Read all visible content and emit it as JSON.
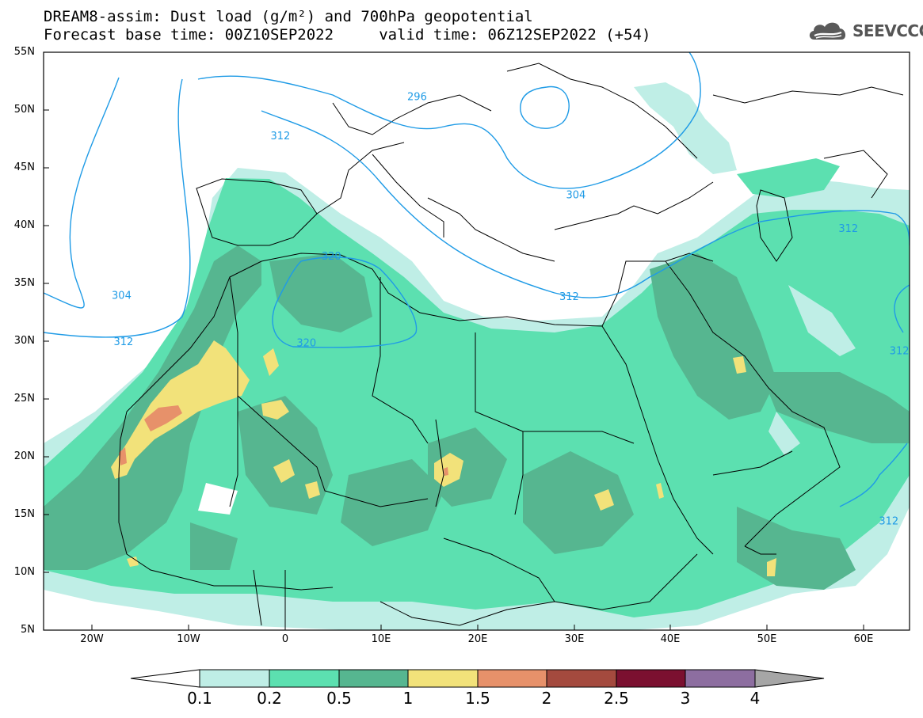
{
  "title_line1": "DREAM8-assim: Dust load (g/m²) and 700hPa geopotential",
  "title_line2": "Forecast base time: 00Z10SEP2022     valid time: 06Z12SEP2022 (+54)",
  "logo": {
    "text": "SEEVCCC",
    "icon": "cloud-logo-icon"
  },
  "map": {
    "lat_labels": [
      "55N",
      "50N",
      "45N",
      "40N",
      "35N",
      "30N",
      "25N",
      "20N",
      "15N",
      "10N",
      "5N"
    ],
    "lon_labels": [
      "20W",
      "10W",
      "0",
      "10E",
      "20E",
      "30E",
      "40E",
      "50E",
      "60E"
    ],
    "contour_labels": [
      {
        "text": "296",
        "lon": 13.7,
        "lat": 51.2
      },
      {
        "text": "312",
        "lon": -0.5,
        "lat": 47.8
      },
      {
        "text": "304",
        "lon": 30.2,
        "lat": 42.7
      },
      {
        "text": "312",
        "lon": 58.5,
        "lat": 39.8
      },
      {
        "text": "320",
        "lon": 4.8,
        "lat": 37.4
      },
      {
        "text": "304",
        "lon": -17.0,
        "lat": 34.0
      },
      {
        "text": "312",
        "lon": 29.5,
        "lat": 33.9
      },
      {
        "text": "312",
        "lon": -16.8,
        "lat": 30.0
      },
      {
        "text": "320",
        "lon": 2.2,
        "lat": 29.9
      },
      {
        "text": "312",
        "lon": 63.8,
        "lat": 29.2
      },
      {
        "text": "312",
        "lon": 62.7,
        "lat": 14.5
      }
    ]
  },
  "colorbar": {
    "labels": [
      "0.1",
      "0.2",
      "0.5",
      "1",
      "1.5",
      "2",
      "2.5",
      "3",
      "4"
    ],
    "colors": {
      "0.1-0.2": "#bfeee6",
      "0.2-0.5": "#5ce0b0",
      "0.5-1": "#56b690",
      "1-1.5": "#f2e27a",
      "1.5-2": "#e7916a",
      "2-2.5": "#a44a3e",
      "2.5-3": "#7b1030",
      "3-4": "#8d6ea0",
      "over": "#a6a6a6",
      "under": "#ffffff"
    }
  },
  "colors": {
    "contour": "#1f9be6",
    "coast": "#000000"
  }
}
